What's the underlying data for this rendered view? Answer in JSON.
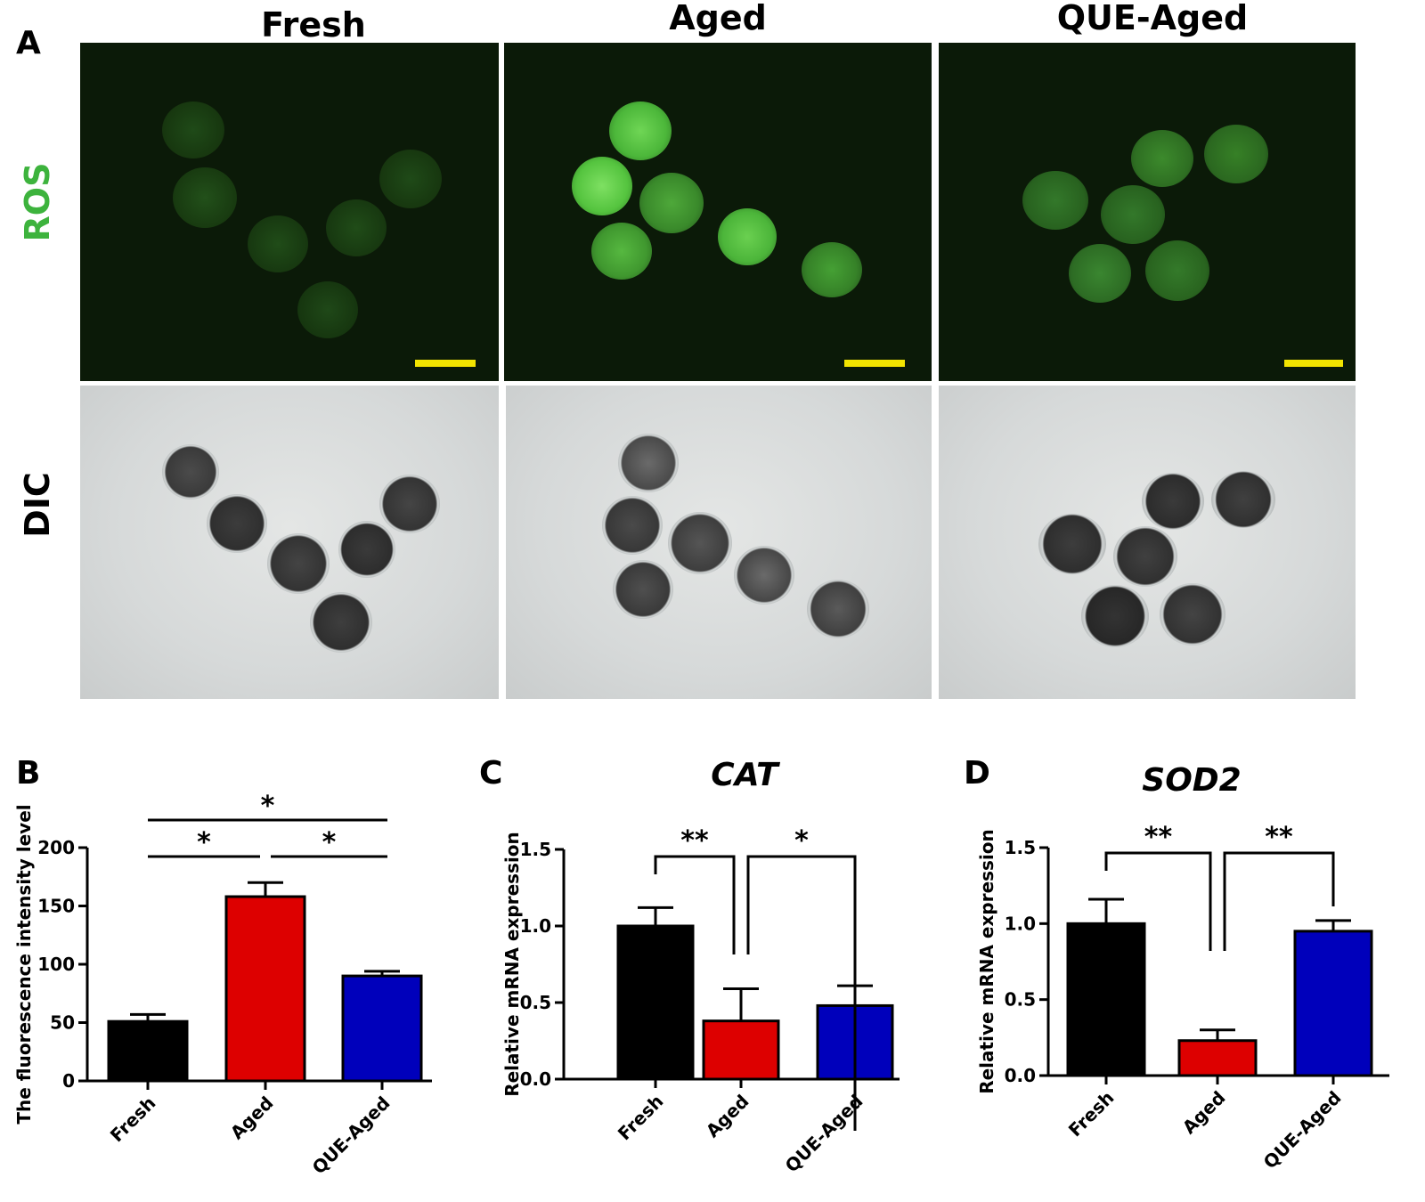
{
  "figure": {
    "panels": {
      "a": "A",
      "b": "B",
      "c": "C",
      "d": "D"
    },
    "columns": [
      "Fresh",
      "Aged",
      "QUE-Aged"
    ],
    "rows": {
      "ros": "ROS",
      "dic": "DIC"
    },
    "colors": {
      "ros_label": "#3db33d",
      "fresh": "#000000",
      "aged": "#dd0000",
      "que_aged": "#0000bb",
      "scalebar": "#f2e400"
    }
  },
  "chart_data": [
    {
      "type": "bar",
      "panel": "B",
      "title": "",
      "categories": [
        "Fresh",
        "Aged",
        "QUE-Aged"
      ],
      "values": [
        51,
        158,
        90
      ],
      "errors": [
        6,
        12,
        4
      ],
      "ylabel": "The fluorescence intensity level",
      "ylim": [
        0,
        200
      ],
      "yticks": [
        "0",
        "50",
        "100",
        "150",
        "200"
      ],
      "bar_colors": [
        "#000000",
        "#dd0000",
        "#0000bb"
      ],
      "significance": [
        {
          "from": 0,
          "to": 1,
          "label": "*"
        },
        {
          "from": 1,
          "to": 2,
          "label": "*"
        },
        {
          "from": 0,
          "to": 2,
          "label": "*"
        }
      ]
    },
    {
      "type": "bar",
      "panel": "C",
      "title": "CAT",
      "categories": [
        "Fresh",
        "Aged",
        "QUE-Aged"
      ],
      "values": [
        1.0,
        0.38,
        0.48
      ],
      "errors": [
        0.12,
        0.21,
        0.13
      ],
      "ylabel": "Relative mRNA expression",
      "ylim": [
        0,
        1.5
      ],
      "yticks": [
        "0.0",
        "0.5",
        "1.0",
        "1.5"
      ],
      "bar_colors": [
        "#000000",
        "#dd0000",
        "#0000bb"
      ],
      "significance": [
        {
          "from": 0,
          "to": 1,
          "label": "**"
        },
        {
          "from": 1,
          "to": 2,
          "label": "*"
        }
      ]
    },
    {
      "type": "bar",
      "panel": "D",
      "title": "SOD2",
      "categories": [
        "Fresh",
        "Aged",
        "QUE-Aged"
      ],
      "values": [
        1.0,
        0.23,
        0.95
      ],
      "errors": [
        0.16,
        0.07,
        0.07
      ],
      "ylabel": "Relative mRNA expression",
      "ylim": [
        0,
        1.5
      ],
      "yticks": [
        "0.0",
        "0.5",
        "1.0",
        "1.5"
      ],
      "bar_colors": [
        "#000000",
        "#dd0000",
        "#0000bb"
      ],
      "significance": [
        {
          "from": 0,
          "to": 1,
          "label": "**"
        },
        {
          "from": 1,
          "to": 2,
          "label": "**"
        }
      ]
    }
  ]
}
